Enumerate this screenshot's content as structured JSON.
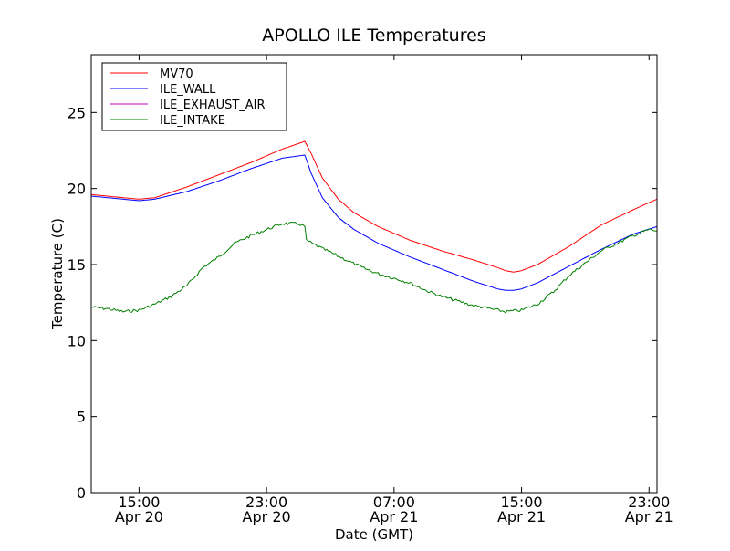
{
  "chart_data": {
    "type": "line",
    "title": "APOLLO ILE Temperatures",
    "xlabel": "Date (GMT)",
    "ylabel": "Temperature (C)",
    "x_unit": "hours since Apr 20 00:00 GMT",
    "xlim": [
      12.0,
      47.5
    ],
    "ylim": [
      0,
      28.8
    ],
    "yticks": [
      0,
      5,
      10,
      15,
      20,
      25
    ],
    "xticks": [
      {
        "x": 15,
        "time": "15:00",
        "date": "Apr 20"
      },
      {
        "x": 23,
        "time": "23:00",
        "date": "Apr 20"
      },
      {
        "x": 31,
        "time": "07:00",
        "date": "Apr 21"
      },
      {
        "x": 39,
        "time": "15:00",
        "date": "Apr 21"
      },
      {
        "x": 47,
        "time": "23:00",
        "date": "Apr 21"
      }
    ],
    "grid": false,
    "legend_position": "top-left",
    "series": [
      {
        "name": "MV70",
        "color": "#ff0000",
        "x": [
          12,
          13,
          14,
          15,
          16,
          18,
          20,
          22,
          24,
          25.4,
          25.8,
          26.5,
          27.5,
          28.5,
          30,
          32,
          34,
          36,
          37.5,
          38,
          38.5,
          39,
          40,
          42,
          44,
          46,
          47.5
        ],
        "y": [
          19.6,
          19.5,
          19.4,
          19.3,
          19.4,
          20.1,
          20.9,
          21.7,
          22.6,
          23.1,
          22.3,
          20.7,
          19.3,
          18.4,
          17.5,
          16.6,
          15.9,
          15.3,
          14.8,
          14.6,
          14.5,
          14.6,
          15.0,
          16.2,
          17.6,
          18.6,
          19.3
        ]
      },
      {
        "name": "ILE_WALL",
        "color": "#0000ff",
        "x": [
          12,
          13,
          14,
          15,
          16,
          18,
          20,
          22,
          24,
          25.4,
          25.8,
          26.5,
          27.5,
          28.5,
          30,
          32,
          34,
          36,
          37.5,
          38,
          38.5,
          39,
          40,
          42,
          44,
          46,
          47.5
        ],
        "y": [
          19.5,
          19.4,
          19.3,
          19.2,
          19.3,
          19.8,
          20.5,
          21.3,
          22.0,
          22.2,
          21.0,
          19.4,
          18.1,
          17.3,
          16.4,
          15.5,
          14.7,
          13.9,
          13.4,
          13.3,
          13.3,
          13.4,
          13.8,
          14.9,
          16.0,
          17.0,
          17.5
        ]
      },
      {
        "name": "ILE_EXHAUST_AIR",
        "color": "#bf00bf",
        "x": [],
        "y": []
      },
      {
        "name": "ILE_INTAKE",
        "color": "#008000",
        "x": [
          12,
          13,
          14,
          15,
          16,
          17,
          18,
          19,
          20,
          21,
          22,
          23,
          24,
          25,
          25.4,
          25.5,
          26,
          27,
          28,
          29,
          30,
          31,
          32,
          33,
          34,
          35,
          36,
          37,
          38,
          39,
          40,
          41,
          42,
          43,
          44,
          45,
          46,
          47,
          47.5
        ],
        "y": [
          12.2,
          12.1,
          11.9,
          12.0,
          12.4,
          12.9,
          13.6,
          14.8,
          15.5,
          16.4,
          16.9,
          17.3,
          17.7,
          17.7,
          17.5,
          16.6,
          16.3,
          15.8,
          15.3,
          14.8,
          14.4,
          14.1,
          13.8,
          13.3,
          12.9,
          12.6,
          12.3,
          12.1,
          11.9,
          12.0,
          12.4,
          13.2,
          14.3,
          15.1,
          15.9,
          16.4,
          16.9,
          17.3,
          17.2
        ]
      }
    ]
  }
}
